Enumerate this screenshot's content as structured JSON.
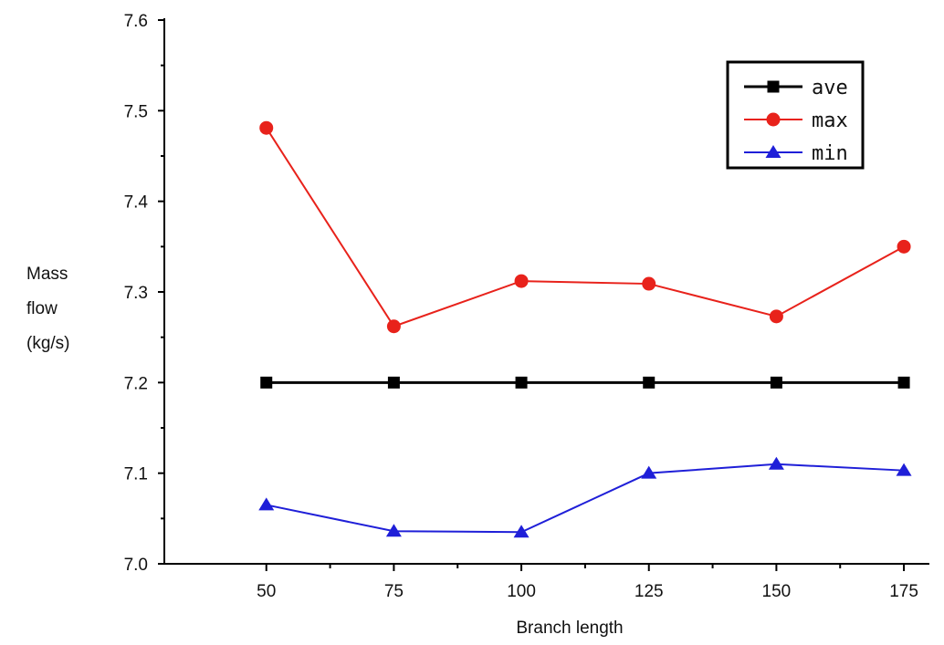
{
  "chart_data": {
    "type": "line",
    "x": [
      50,
      75,
      100,
      125,
      150,
      175
    ],
    "xlabel": "Branch length",
    "ylabel_lines": [
      "Mass",
      "flow",
      "(kg/s)"
    ],
    "xlim": [
      30,
      180
    ],
    "ylim": [
      7.0,
      7.6
    ],
    "x_ticks": [
      "50",
      "75",
      "100",
      "125",
      "150",
      "175"
    ],
    "y_ticks": [
      "7.0",
      "7.1",
      "7.2",
      "7.3",
      "7.4",
      "7.5",
      "7.6"
    ],
    "grid": false,
    "legend_position": "top-right",
    "series": [
      {
        "name": "ave",
        "color": "#000000",
        "marker": "square",
        "values": [
          7.2,
          7.2,
          7.2,
          7.2,
          7.2,
          7.2
        ]
      },
      {
        "name": "max",
        "color": "#e8221b",
        "marker": "circle",
        "values": [
          7.481,
          7.262,
          7.312,
          7.309,
          7.273,
          7.35
        ]
      },
      {
        "name": "min",
        "color": "#1f1fd8",
        "marker": "triangle",
        "values": [
          7.065,
          7.036,
          7.035,
          7.1,
          7.11,
          7.103
        ]
      }
    ]
  }
}
